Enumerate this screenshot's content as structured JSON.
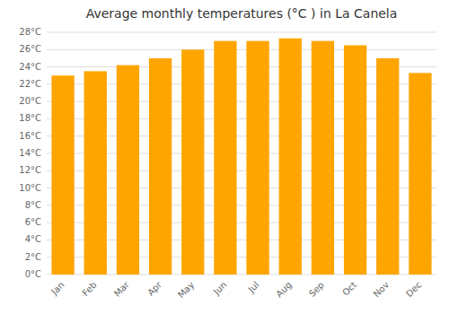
{
  "chart_data": {
    "type": "bar",
    "title": "Average monthly temperatures (°C ) in La Canela",
    "categories": [
      "Jan",
      "Feb",
      "Mar",
      "Apr",
      "May",
      "Jun",
      "Jul",
      "Aug",
      "Sep",
      "Oct",
      "Nov",
      "Dec"
    ],
    "values": [
      23,
      23.5,
      24.2,
      25,
      26,
      27,
      27,
      27.3,
      27,
      26.5,
      25,
      23.3
    ],
    "color": "#FFA500",
    "ylim": [
      0,
      28
    ],
    "yticks": [
      {
        "value": 0,
        "label": "0°C"
      },
      {
        "value": 2,
        "label": "2°C"
      },
      {
        "value": 4,
        "label": "4°C"
      },
      {
        "value": 6,
        "label": "6°C"
      },
      {
        "value": 8,
        "label": "8°C"
      },
      {
        "value": 10,
        "label": "10°C"
      },
      {
        "value": 12,
        "label": "12°C"
      },
      {
        "value": 14,
        "label": "14°C"
      },
      {
        "value": 16,
        "label": "16°C"
      },
      {
        "value": 18,
        "label": "18°C"
      },
      {
        "value": 20,
        "label": "20°C"
      },
      {
        "value": 22,
        "label": "22°C"
      },
      {
        "value": 24,
        "label": "24°C"
      },
      {
        "value": 26,
        "label": "26°C"
      },
      {
        "value": 28,
        "label": "28°C"
      }
    ],
    "grid": true
  }
}
